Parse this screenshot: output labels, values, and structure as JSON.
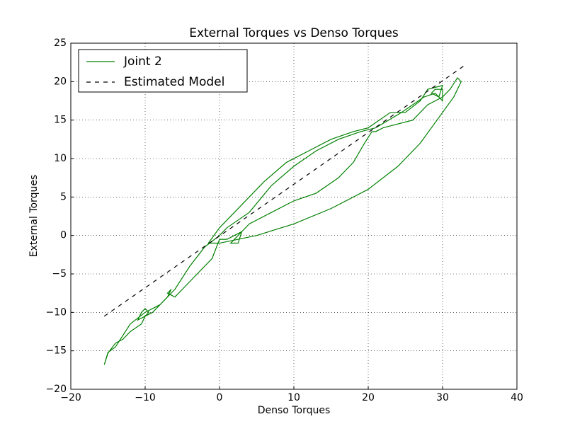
{
  "chart_data": {
    "type": "line",
    "title": "External Torques vs Denso Torques",
    "x_label": "Denso Torques",
    "y_label": "External Torques",
    "xlim": [
      -20,
      40
    ],
    "ylim": [
      -20,
      25
    ],
    "xticks": [
      {
        "value": -20,
        "label": "−20"
      },
      {
        "value": -10,
        "label": "−10"
      },
      0,
      10,
      20,
      30,
      40
    ],
    "yticks": [
      {
        "value": -20,
        "label": "−20"
      },
      {
        "value": -15,
        "label": "−15"
      },
      {
        "value": -10,
        "label": "−10"
      },
      {
        "value": -5,
        "label": "−5"
      },
      0,
      5,
      10,
      15,
      20,
      25
    ],
    "grid": true,
    "legend": "upper left",
    "series": [
      {
        "name": "Joint 2",
        "color": "#008000",
        "dash": "solid",
        "x": [
          -15.5,
          -15,
          -14,
          -13,
          -12,
          -10.5,
          -10,
          -9.5,
          -10,
          -10.5,
          -11,
          -9,
          -7,
          -6.5,
          -7,
          -6,
          -5,
          -3,
          -1,
          0,
          1,
          2,
          3,
          2.5,
          1.5,
          4,
          7,
          10,
          13,
          16,
          18,
          19.5,
          20.5,
          21,
          22,
          26,
          28,
          30,
          31,
          32,
          32.5,
          31.5,
          30,
          27,
          24,
          20,
          15,
          10,
          5,
          0,
          -1.5,
          0,
          3,
          6,
          9,
          12,
          15,
          18,
          20,
          23,
          25,
          27,
          28,
          30,
          29.5,
          28.5,
          29,
          30,
          30,
          29,
          27.5,
          24.5,
          21,
          19,
          16,
          13,
          10,
          7,
          4,
          1,
          0,
          -2,
          -4,
          -6,
          -8,
          -10,
          -12,
          -14,
          -15,
          -15.5
        ],
        "values": [
          -16.8,
          -15.3,
          -14,
          -13.5,
          -12.5,
          -11.5,
          -10.5,
          -10,
          -9.5,
          -10,
          -11,
          -10,
          -8,
          -7,
          -7.5,
          -8,
          -7,
          -5,
          -3,
          -0.5,
          -0.5,
          0,
          0.5,
          -1,
          -1,
          1.5,
          3,
          4.5,
          5.5,
          7.5,
          9.5,
          12,
          13.5,
          13.5,
          14,
          15,
          17,
          18,
          19,
          20.5,
          20,
          18,
          16,
          12,
          9,
          6,
          3.5,
          1.5,
          0,
          -1,
          -1,
          1,
          4,
          7,
          9.5,
          11,
          12.5,
          13.5,
          14,
          16,
          16,
          17.5,
          19,
          19.5,
          18,
          18.5,
          19,
          19,
          17.5,
          18.5,
          18,
          16,
          14,
          13.5,
          12.5,
          11,
          9,
          6.5,
          3,
          1,
          0,
          -1.5,
          -4,
          -7,
          -9,
          -10,
          -11.5,
          -14.5,
          -15.2,
          -16.8
        ]
      },
      {
        "name": "Estimated Model",
        "color": "#000000",
        "dash": "dashed",
        "x": [
          -15.5,
          32.8
        ],
        "values": [
          -10.5,
          22
        ]
      }
    ]
  }
}
